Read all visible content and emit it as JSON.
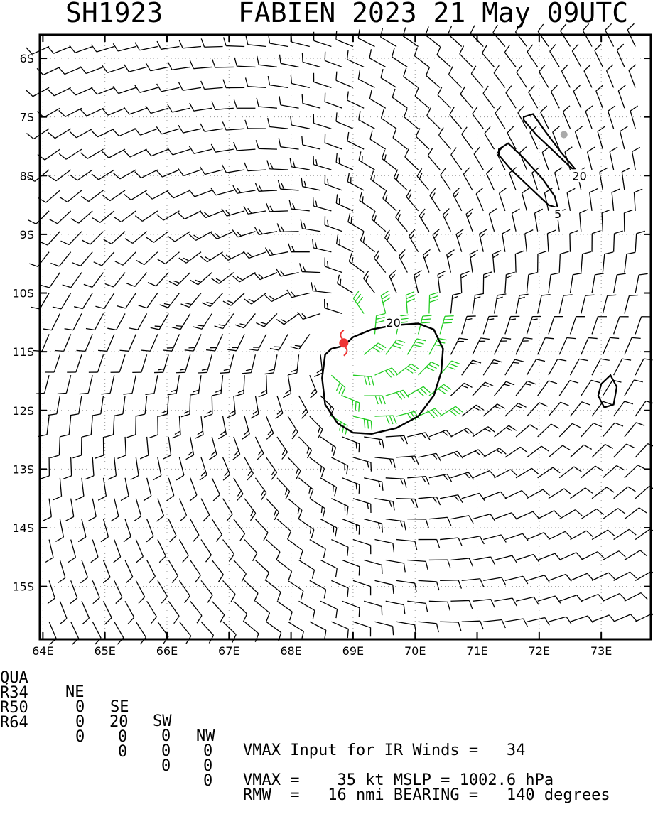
{
  "header": {
    "storm_id": "SH1923",
    "storm_title": "FABIEN 2023 21 May 09UTC"
  },
  "map": {
    "lon_range": [
      63.95,
      73.8
    ],
    "lat_range": [
      -15.9,
      -5.6
    ],
    "lon_ticks": [
      "64E",
      "65E",
      "66E",
      "67E",
      "68E",
      "69E",
      "70E",
      "71E",
      "72E",
      "73E"
    ],
    "lat_ticks": [
      "6S",
      "7S",
      "8S",
      "9S",
      "10S",
      "11S",
      "12S",
      "13S",
      "14S",
      "15S"
    ],
    "center": {
      "lon": 68.85,
      "lat": -10.85
    },
    "storm_marker_color": "#ee3333",
    "barb_color": "#000000",
    "strong_barb_color": "#22cc22",
    "contour_color": "#000000",
    "contour_labels": [
      {
        "text": "20",
        "lon": 69.65,
        "lat": -10.5
      },
      {
        "text": "20",
        "lon": 72.65,
        "lat": -8.0
      },
      {
        "text": "5",
        "lon": 72.3,
        "lat": -8.65
      }
    ]
  },
  "info": {
    "col_header": {
      "qua": "QUA",
      "ne": "NE",
      "se": "SE",
      "sw": "SW",
      "nw": "NW"
    },
    "radii": [
      {
        "label": "R34",
        "ne": "0",
        "se": "20",
        "sw": "0",
        "nw": "0"
      },
      {
        "label": "R50",
        "ne": "0",
        "se": "0",
        "sw": "0",
        "nw": "0"
      },
      {
        "label": "R64",
        "ne": "0",
        "se": "0",
        "sw": "0",
        "nw": "0"
      }
    ],
    "vmax_input": "VMAX Input for IR Winds =   34",
    "vmax_mslp": "VMAX =    35 kt MSLP = 1002.6 hPa",
    "rmw_bearing": "RMW  =   16 nmi BEARING =   140 degrees"
  }
}
